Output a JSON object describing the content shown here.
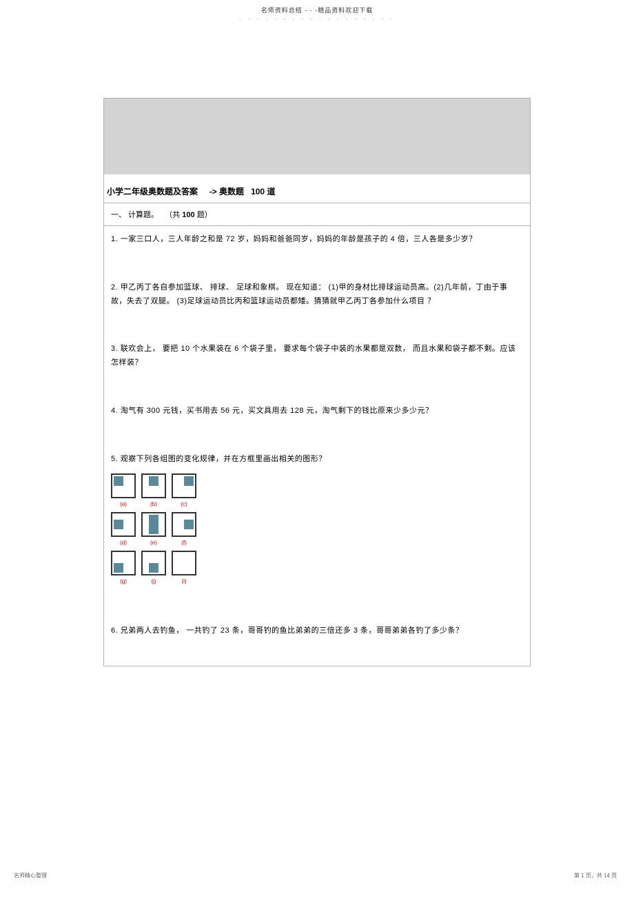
{
  "header": {
    "text": "名师资料总结 - - -精品资料欢迎下载",
    "dots": "- - - - - - - - - - - - - - - - - -"
  },
  "title": {
    "main": "小学二年级奥数题及答案",
    "arrow": "->",
    "sub": "奥数题",
    "count": "100",
    "suffix": "道"
  },
  "subtitle": {
    "prefix": "一、 计算题。",
    "count_prefix": "（共",
    "count": "100",
    "count_suffix": "题）"
  },
  "questions": {
    "q1": "1.  一家三口人，三人年龄之和是      72 岁，妈妈和爸爸同岁，妈妈的年龄是孩子的      4 倍，三人各是多少岁？",
    "q2": "2.  甲乙丙丁各自参加篮球、  排球、 足球和象棋。  现在知道：  (1)甲的身材比排球运动员高。(2)几年前，丁由于事故，失去了双腿。      (3)足球运动员比丙和篮球运动员都矮。猜猜就甲乙丙丁各参加什么项目   ？",
    "q3": "3.  联欢会上， 要把  10 个水果装在   6 个袋子里， 要求每个袋子中装的水果都是双数，      而且水果和袋子都不剩。应该怎样装？",
    "q4": "4.  淘气有  300 元钱，买书用去   56 元，买文具用去   128 元，淘气剩下的钱比原来少多少元？",
    "q5": "5.  观察下列各组图的变化规律，并在方框里画出相关的图形？",
    "q6": "6.  兄弟两人去钓鱼，  一共钓了   23 条，哥哥钓的鱼比弟弟的三倍还多      3 条，哥哥弟弟各钓了多少条？"
  },
  "pattern": {
    "labels": {
      "a": "(a)",
      "b": "(b)",
      "c": "(c)",
      "d": "(d)",
      "e": "(e)",
      "f": "(f)",
      "g": "(g)",
      "h": "(j)",
      "i": "(i)"
    }
  },
  "footer": {
    "left": "名师精心整理",
    "left_dots": ". . . . . . .",
    "right": "第 1 页，共 14 页",
    "right_dots": ". . . . . . . . ."
  },
  "colors": {
    "gray_header": "#d3d3d3",
    "border": "#b0b0b0",
    "inner_square": "#5a8a9a",
    "label_red": "#c00"
  }
}
